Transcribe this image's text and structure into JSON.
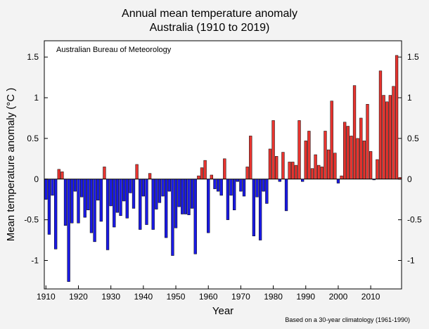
{
  "chart_data": {
    "type": "bar",
    "title": "Annual mean temperature anomaly",
    "subtitle": "Australia (1910 to 2019)",
    "xlabel": "Year",
    "ylabel": "Mean temperature anomaly (°C )",
    "annotation": "Australian Bureau of Meteorology",
    "footnote": "Based on a 30-year climatology (1961-1990)",
    "xlim": [
      1909.5,
      2019.5
    ],
    "ylim": [
      -1.35,
      1.7
    ],
    "x_ticks": [
      "1910",
      "1920",
      "1930",
      "1940",
      "1950",
      "1960",
      "1970",
      "1980",
      "1990",
      "2000",
      "2010"
    ],
    "y_ticks": [
      "1.5",
      "1",
      "0.5",
      "0",
      "-0.5",
      "-1"
    ],
    "colors": {
      "positive": "#e8342f",
      "negative": "#1a1ae6",
      "frame": "#000000",
      "background": "#ffffff"
    },
    "years": [
      1910,
      1911,
      1912,
      1913,
      1914,
      1915,
      1916,
      1917,
      1918,
      1919,
      1920,
      1921,
      1922,
      1923,
      1924,
      1925,
      1926,
      1927,
      1928,
      1929,
      1930,
      1931,
      1932,
      1933,
      1934,
      1935,
      1936,
      1937,
      1938,
      1939,
      1940,
      1941,
      1942,
      1943,
      1944,
      1945,
      1946,
      1947,
      1948,
      1949,
      1950,
      1951,
      1952,
      1953,
      1954,
      1955,
      1956,
      1957,
      1958,
      1959,
      1960,
      1961,
      1962,
      1963,
      1964,
      1965,
      1966,
      1967,
      1968,
      1969,
      1970,
      1971,
      1972,
      1973,
      1974,
      1975,
      1976,
      1977,
      1978,
      1979,
      1980,
      1981,
      1982,
      1983,
      1984,
      1985,
      1986,
      1987,
      1988,
      1989,
      1990,
      1991,
      1992,
      1993,
      1994,
      1995,
      1996,
      1997,
      1998,
      1999,
      2000,
      2001,
      2002,
      2003,
      2004,
      2005,
      2006,
      2007,
      2008,
      2009,
      2010,
      2011,
      2012,
      2013,
      2014,
      2015,
      2016,
      2017,
      2018,
      2019
    ],
    "values": [
      -0.25,
      -0.68,
      -0.2,
      -0.86,
      0.12,
      0.09,
      -0.57,
      -1.26,
      -0.54,
      -0.15,
      -0.54,
      -0.22,
      -0.47,
      -0.38,
      -0.66,
      -0.77,
      -0.26,
      -0.52,
      0.15,
      -0.87,
      -0.33,
      -0.59,
      -0.41,
      -0.45,
      -0.27,
      -0.48,
      -0.17,
      -0.36,
      0.18,
      -0.62,
      -0.21,
      -0.56,
      0.07,
      -0.62,
      -0.37,
      -0.29,
      -0.21,
      -0.72,
      -0.15,
      -0.94,
      -0.6,
      -0.34,
      -0.43,
      -0.43,
      -0.44,
      -0.36,
      -0.92,
      0.04,
      0.14,
      0.23,
      -0.66,
      0.05,
      -0.12,
      -0.15,
      -0.2,
      0.25,
      -0.5,
      -0.2,
      -0.38,
      -0.03,
      -0.15,
      -0.21,
      0.15,
      0.53,
      -0.7,
      -0.22,
      -0.75,
      -0.15,
      -0.3,
      0.37,
      0.72,
      0.28,
      -0.03,
      0.33,
      -0.39,
      0.21,
      0.21,
      0.17,
      0.72,
      -0.03,
      0.47,
      0.59,
      0.13,
      0.3,
      0.17,
      0.15,
      0.59,
      0.36,
      0.96,
      0.32,
      -0.05,
      0.04,
      0.7,
      0.65,
      0.53,
      1.15,
      0.5,
      0.75,
      0.47,
      0.92,
      0.34,
      -0.01,
      0.24,
      1.33,
      1.03,
      0.95,
      1.03,
      1.14,
      1.52,
      0.02
    ]
  }
}
